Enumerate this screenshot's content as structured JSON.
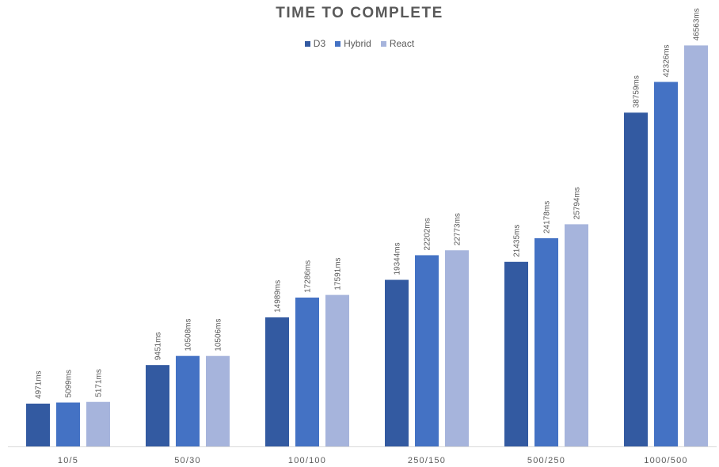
{
  "chart_data": {
    "type": "bar",
    "title": "TIME TO COMPLETE",
    "categories": [
      "10/5",
      "50/30",
      "100/100",
      "250/150",
      "500/250",
      "1000/500"
    ],
    "series": [
      {
        "name": "D3",
        "color": "#335aa1",
        "values": [
          4971,
          9451,
          14989,
          19344,
          21435,
          38759
        ]
      },
      {
        "name": "Hybrid",
        "color": "#4472c4",
        "values": [
          5099,
          10508,
          17286,
          22202,
          24178,
          42326
        ]
      },
      {
        "name": "React",
        "color": "#a6b4dc",
        "values": [
          5171,
          10506,
          17591,
          22773,
          25794,
          46563
        ]
      }
    ],
    "data_label_suffix": "ms",
    "ylim": [
      0,
      50000
    ],
    "grid": false,
    "legend_position": "top-center",
    "xlabel": "",
    "ylabel": ""
  }
}
